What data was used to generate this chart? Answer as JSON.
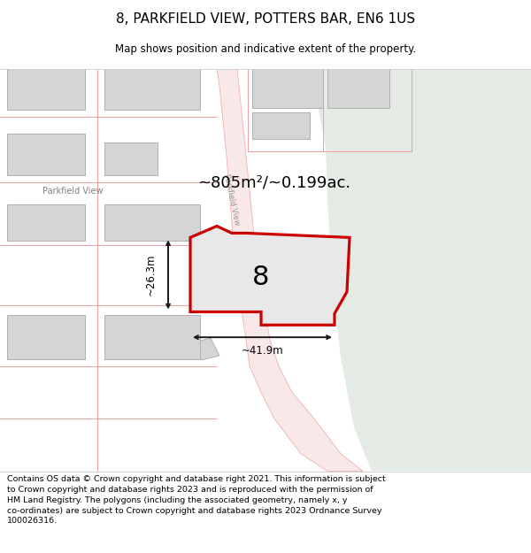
{
  "title": "8, PARKFIELD VIEW, POTTERS BAR, EN6 1US",
  "subtitle": "Map shows position and indicative extent of the property.",
  "area_text": "~805m²/~0.199ac.",
  "width_text": "~41.9m",
  "height_text": "~26.3m",
  "number_label": "8",
  "footer_line1": "Contains OS data © Crown copyright and database right 2021. This information is subject",
  "footer_line2": "to Crown copyright and database rights 2023 and is reproduced with the permission of",
  "footer_line3": "HM Land Registry. The polygons (including the associated geometry, namely x, y",
  "footer_line4": "co-ordinates) are subject to Crown copyright and database rights 2023 Ordnance Survey",
  "footer_line5": "100026316.",
  "map_bg": "#f2f2ee",
  "green_color": "#e4eae4",
  "plot_fill": "#e8e8e8",
  "plot_edge": "#cc0000",
  "bldg_fill": "#d5d5d5",
  "bldg_edge": "#b0b0b0",
  "road_edge_color": "#f0b0b0",
  "plot_line_color": "#f0a0a0",
  "dim_color": "#1a1a1a",
  "road_label_color": "#999999",
  "street_label_color": "#808080",
  "title_fontsize": 11,
  "subtitle_fontsize": 8.5,
  "footer_fontsize": 6.8,
  "area_fontsize": 13,
  "dim_fontsize": 8.5,
  "label_fontsize": 22
}
